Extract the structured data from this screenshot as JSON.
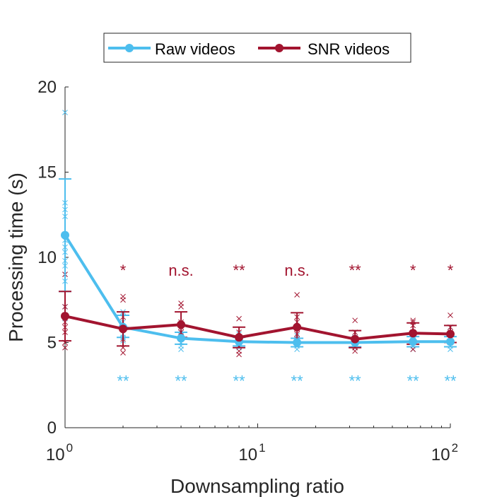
{
  "chart_data": {
    "type": "line",
    "xlabel": "Downsampling ratio",
    "ylabel": "Processing time (s)",
    "xscale": "log",
    "xlim": [
      1,
      100
    ],
    "ylim": [
      0,
      20
    ],
    "x_ticks": [
      1,
      10,
      100
    ],
    "x_tick_labels": [
      {
        "base": "10",
        "exp": "0"
      },
      {
        "base": "10",
        "exp": "1"
      },
      {
        "base": "10",
        "exp": "2"
      }
    ],
    "y_ticks": [
      0,
      5,
      10,
      15,
      20
    ],
    "y_tick_labels": [
      "0",
      "5",
      "10",
      "15",
      "20"
    ],
    "legend_position": "top",
    "x": [
      1,
      2,
      4,
      8,
      16,
      32,
      64,
      100
    ],
    "series": [
      {
        "name": "Raw videos",
        "color": "#4DBEEE",
        "values": [
          11.3,
          5.9,
          5.25,
          5.05,
          5.0,
          5.0,
          5.05,
          5.05
        ],
        "error_low": [
          8.0,
          5.3,
          4.9,
          4.8,
          4.75,
          4.75,
          4.75,
          4.75
        ],
        "error_high": [
          14.6,
          6.6,
          5.6,
          5.3,
          5.25,
          5.25,
          5.35,
          5.35
        ],
        "samples": [
          [
            18.5,
            13.2,
            12.8,
            12.4,
            11.0,
            10.6,
            10.3,
            9.8,
            9.5,
            9.0,
            8.6,
            7.1,
            6.4
          ],
          [
            6.8,
            6.7,
            6.2,
            5.8,
            5.5,
            5.3,
            5.1
          ],
          [
            5.6,
            5.4,
            5.2,
            5.0,
            4.8,
            4.6
          ],
          [
            5.5,
            5.3,
            5.1,
            4.9,
            4.7
          ],
          [
            5.4,
            5.2,
            5.0,
            4.8,
            4.6
          ],
          [
            5.3,
            5.1,
            4.9,
            4.7
          ],
          [
            5.4,
            5.2,
            5.0,
            4.8,
            4.6
          ],
          [
            5.9,
            5.2,
            5.0,
            4.8,
            4.6
          ]
        ]
      },
      {
        "name": "SNR videos",
        "color": "#A2142F",
        "values": [
          6.55,
          5.8,
          6.05,
          5.3,
          5.9,
          5.2,
          5.55,
          5.5
        ],
        "error_low": [
          5.1,
          4.8,
          5.3,
          4.7,
          5.0,
          4.7,
          4.9,
          5.0
        ],
        "error_high": [
          8.0,
          6.8,
          6.8,
          5.9,
          6.75,
          5.7,
          6.15,
          6.0
        ],
        "samples": [
          [
            9.0,
            7.1,
            6.6,
            6.2,
            5.9,
            5.6,
            5.0,
            4.7
          ],
          [
            7.7,
            7.5,
            6.5,
            5.9,
            5.2,
            4.7,
            4.4
          ],
          [
            7.3,
            7.1,
            6.2,
            5.9,
            5.6
          ],
          [
            6.4,
            5.6,
            5.2,
            4.8,
            4.5,
            4.3
          ],
          [
            7.8,
            6.5,
            6.2,
            5.8,
            5.5,
            5.2
          ],
          [
            6.3,
            5.6,
            5.2,
            4.7,
            4.5
          ],
          [
            6.3,
            6.2,
            6.0,
            5.6,
            5.0,
            4.6
          ],
          [
            6.6,
            5.9,
            5.6,
            5.2,
            5.0
          ]
        ]
      }
    ],
    "annotations_top": {
      "color": "#A2142F",
      "y": 9.5,
      "labels": [
        "*",
        "n.s.",
        "**",
        "n.s.",
        "**",
        "*",
        "*"
      ],
      "x": [
        2,
        4,
        8,
        16,
        32,
        64,
        100
      ]
    },
    "annotations_bottom": {
      "color": "#4DBEEE",
      "y": 3.0,
      "labels": [
        "**",
        "**",
        "**",
        "**",
        "**",
        "**",
        "**"
      ],
      "x": [
        2,
        4,
        8,
        16,
        32,
        64,
        100
      ]
    }
  }
}
